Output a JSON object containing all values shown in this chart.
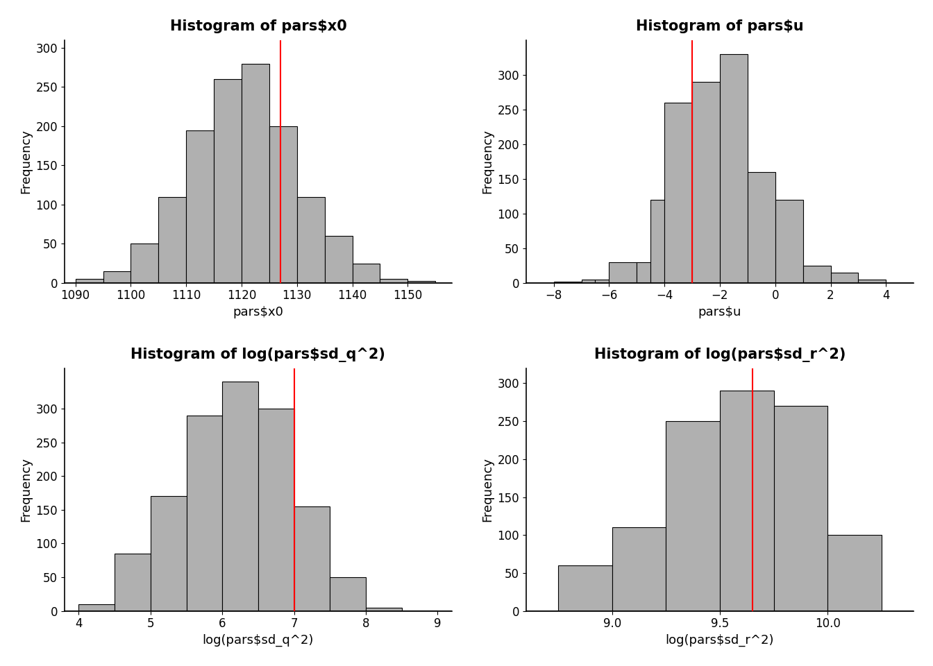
{
  "plots": [
    {
      "title": "Histogram of pars$x0",
      "xlabel": "pars$x0",
      "ylabel": "Frequency",
      "bin_edges": [
        1090,
        1095,
        1100,
        1105,
        1110,
        1115,
        1120,
        1125,
        1130,
        1135,
        1140,
        1145,
        1150,
        1155
      ],
      "counts": [
        5,
        15,
        50,
        110,
        195,
        260,
        280,
        200,
        110,
        60,
        25,
        5,
        2
      ],
      "red_line": 1127,
      "xlim": [
        1088,
        1158
      ],
      "xticks": [
        1090,
        1100,
        1110,
        1120,
        1130,
        1140,
        1150
      ],
      "ylim": [
        0,
        310
      ],
      "yticks": [
        0,
        50,
        100,
        150,
        200,
        250,
        300
      ]
    },
    {
      "title": "Histogram of pars$u",
      "xlabel": "pars$u",
      "ylabel": "Frequency",
      "bin_edges": [
        -8.0,
        -7.0,
        -6.5,
        -6.0,
        -5.0,
        -4.5,
        -4.0,
        -3.0,
        -2.0,
        -1.0,
        0.0,
        1.0,
        2.0,
        3.0,
        4.0
      ],
      "counts": [
        2,
        5,
        5,
        30,
        30,
        120,
        260,
        290,
        330,
        160,
        120,
        25,
        15,
        5
      ],
      "red_line": -3.0,
      "xlim": [
        -9,
        5
      ],
      "xticks": [
        -8,
        -6,
        -4,
        -2,
        0,
        2,
        4
      ],
      "ylim": [
        0,
        350
      ],
      "yticks": [
        0,
        50,
        100,
        150,
        200,
        250,
        300
      ]
    },
    {
      "title": "Histogram of log(pars$sd_q^2)",
      "xlabel": "log(pars$sd_q^2)",
      "ylabel": "Frequency",
      "bin_edges": [
        4.0,
        4.5,
        5.0,
        5.5,
        6.0,
        6.5,
        7.0,
        7.5,
        8.0,
        8.5,
        9.0
      ],
      "counts": [
        10,
        85,
        170,
        290,
        340,
        300,
        155,
        50,
        5,
        1
      ],
      "red_line": 7.0,
      "xlim": [
        3.8,
        9.2
      ],
      "xticks": [
        4,
        5,
        6,
        7,
        8,
        9
      ],
      "ylim": [
        0,
        360
      ],
      "yticks": [
        0,
        50,
        100,
        150,
        200,
        250,
        300
      ]
    },
    {
      "title": "Histogram of log(pars$sd_r^2)",
      "xlabel": "log(pars$sd_r^2)",
      "ylabel": "Frequency",
      "bin_edges": [
        8.75,
        9.0,
        9.25,
        9.5,
        9.75,
        10.0,
        10.25
      ],
      "counts": [
        60,
        110,
        250,
        290,
        270,
        100
      ],
      "red_line": 9.65,
      "xlim": [
        8.6,
        10.4
      ],
      "xticks": [
        9.0,
        9.5,
        10.0
      ],
      "ylim": [
        0,
        320
      ],
      "yticks": [
        0,
        50,
        100,
        150,
        200,
        250,
        300
      ]
    }
  ],
  "bar_color": "#b0b0b0",
  "bar_edgecolor": "#000000",
  "red_line_color": "#ff0000",
  "background_color": "#ffffff",
  "title_fontsize": 15,
  "label_fontsize": 13,
  "tick_fontsize": 12
}
